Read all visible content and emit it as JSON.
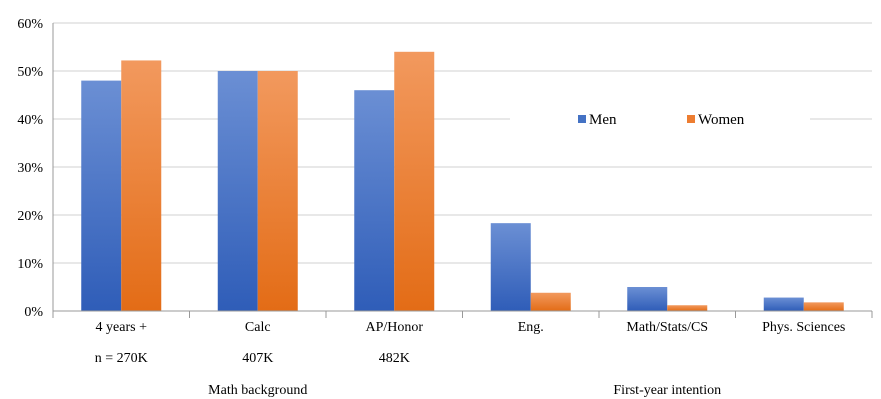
{
  "chart_data": {
    "type": "bar",
    "title": "",
    "xlabel": "",
    "ylabel": "",
    "ylim": [
      0,
      60
    ],
    "y_ticks": [
      "0%",
      "10%",
      "20%",
      "30%",
      "40%",
      "50%",
      "60%"
    ],
    "grid": true,
    "legend_position": "right",
    "categories": [
      "4 years +",
      "Calc",
      "AP/Honor",
      "Eng.",
      "Math/Stats/CS",
      "Phys. Sciences"
    ],
    "sublabels": [
      "n = 270K",
      "407K",
      "482K",
      "",
      "",
      ""
    ],
    "groups": [
      {
        "label": "Math background",
        "categories": [
          "4 years +",
          "Calc",
          "AP/Honor"
        ]
      },
      {
        "label": "First-year intention",
        "categories": [
          "Eng.",
          "Math/Stats/CS",
          "Phys. Sciences"
        ]
      }
    ],
    "series": [
      {
        "name": "Men",
        "color": "#4472C4",
        "values": [
          48,
          50,
          46,
          18.3,
          5,
          2.8
        ]
      },
      {
        "name": "Women",
        "color": "#ED7D31",
        "values": [
          52.2,
          50,
          54,
          3.8,
          1.2,
          1.8
        ]
      }
    ]
  }
}
